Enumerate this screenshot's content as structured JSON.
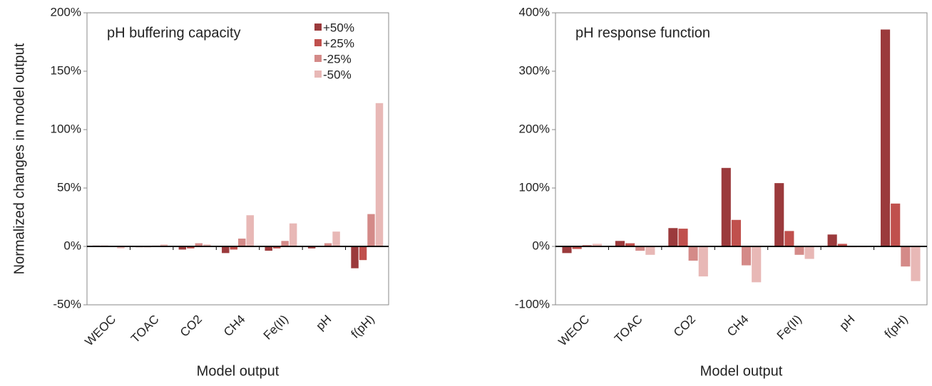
{
  "chart_data": [
    {
      "type": "bar",
      "title": "pH buffering capacity",
      "xlabel": "Model output",
      "ylabel": "Normalized changes in model output",
      "categories": [
        "WEOC",
        "TOAC",
        "CO2",
        "CH4",
        "Fe(II)",
        "pH",
        "f(pH)"
      ],
      "series": [
        {
          "name": "+50%",
          "color": "#9b3a3c",
          "values": [
            1,
            -1,
            -3,
            -6,
            -4,
            -2,
            -19
          ]
        },
        {
          "name": "+25%",
          "color": "#c0504d",
          "values": [
            1,
            -1,
            -2,
            -3,
            -2,
            0,
            -12
          ]
        },
        {
          "name": "-25%",
          "color": "#d48a88",
          "values": [
            0,
            1,
            3,
            7,
            5,
            3,
            28
          ]
        },
        {
          "name": "-50%",
          "color": "#e8b8b6",
          "values": [
            -2,
            2,
            2,
            27,
            20,
            13,
            123
          ]
        }
      ],
      "ylim": [
        -50,
        200
      ],
      "yticks": [
        {
          "value": -50,
          "label": "-50%"
        },
        {
          "value": 0,
          "label": "0%"
        },
        {
          "value": 50,
          "label": "50%"
        },
        {
          "value": 100,
          "label": "100%"
        },
        {
          "value": 150,
          "label": "150%"
        },
        {
          "value": 200,
          "label": "200%"
        }
      ],
      "legend": "upper right"
    },
    {
      "type": "bar",
      "title": "pH response function",
      "xlabel": "Model output",
      "categories": [
        "WEOC",
        "TOAC",
        "CO2",
        "CH4",
        "Fe(II)",
        "pH",
        "f(pH)"
      ],
      "series": [
        {
          "color": "#9b3a3c",
          "values": [
            -12,
            10,
            32,
            135,
            109,
            21,
            372
          ]
        },
        {
          "color": "#c0504d",
          "values": [
            -5,
            6,
            31,
            46,
            27,
            5,
            74
          ]
        },
        {
          "color": "#d48a88",
          "values": [
            3,
            -8,
            -25,
            -33,
            -15,
            -2,
            -35
          ]
        },
        {
          "color": "#e8b8b6",
          "values": [
            5,
            -15,
            -52,
            -62,
            -22,
            -2,
            -60
          ]
        }
      ],
      "ylim": [
        -100,
        400
      ],
      "yticks": [
        {
          "value": -100,
          "label": "-100%"
        },
        {
          "value": 0,
          "label": "0%"
        },
        {
          "value": 100,
          "label": "100%"
        },
        {
          "value": 200,
          "label": "200%"
        },
        {
          "value": 300,
          "label": "300%"
        },
        {
          "value": 400,
          "label": "400%"
        }
      ]
    }
  ]
}
